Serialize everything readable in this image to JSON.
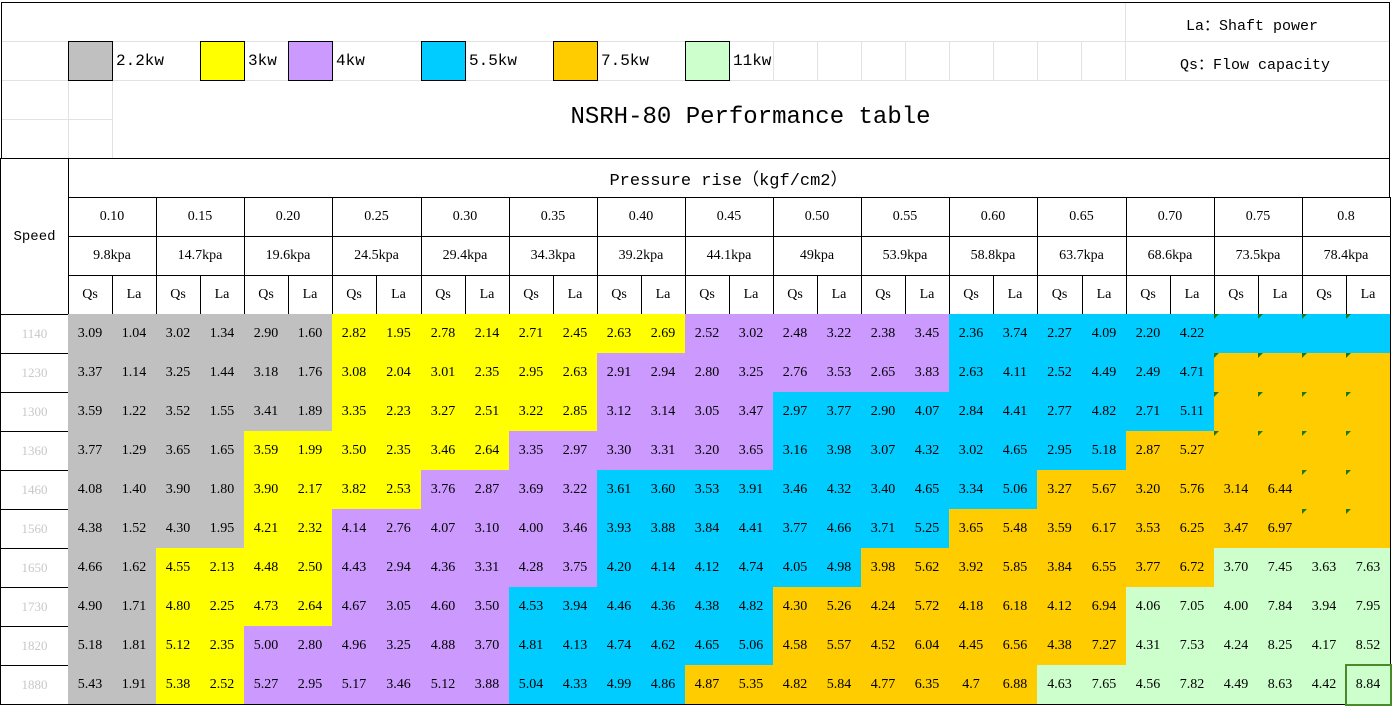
{
  "notes": {
    "la": "La：Shaft power",
    "qs": "Qs：Flow capacity"
  },
  "legend": [
    {
      "label": "2.2kw",
      "code": "g",
      "color": "#C0C0C0"
    },
    {
      "label": "3kw",
      "code": "y",
      "color": "#FFFF00"
    },
    {
      "label": "4kw",
      "code": "p",
      "color": "#CC99FF"
    },
    {
      "label": "5.5kw",
      "code": "c",
      "color": "#00CCFF"
    },
    {
      "label": "7.5kw",
      "code": "o",
      "color": "#FFCC00"
    },
    {
      "label": "11kw",
      "code": "l",
      "color": "#CCFFCC"
    }
  ],
  "title": "NSRH-80 Performance table",
  "table": {
    "speed_label": "Speed",
    "pressure_label": "Pressure rise（kgf/cm2）",
    "pressures": [
      "0.10",
      "0.15",
      "0.20",
      "0.25",
      "0.30",
      "0.35",
      "0.40",
      "0.45",
      "0.50",
      "0.55",
      "0.60",
      "0.65",
      "0.70",
      "0.75",
      "0.8"
    ],
    "kpa": [
      "9.8kpa",
      "14.7kpa",
      "19.6kpa",
      "24.5kpa",
      "29.4kpa",
      "34.3kpa",
      "39.2kpa",
      "44.1kpa",
      "49kpa",
      "53.9kpa",
      "58.8kpa",
      "63.7kpa",
      "68.6kpa",
      "73.5kpa",
      "78.4kpa"
    ],
    "qs_label": "Qs",
    "la_label": "La",
    "rows": [
      {
        "speed": "1140",
        "power": "gggyyyypppccccc",
        "values": [
          "3.09",
          "1.04",
          "3.02",
          "1.34",
          "2.90",
          "1.60",
          "2.82",
          "1.95",
          "2.78",
          "2.14",
          "2.71",
          "2.45",
          "2.63",
          "2.69",
          "2.52",
          "3.02",
          "2.48",
          "3.22",
          "2.38",
          "3.45",
          "2.36",
          "3.74",
          "2.27",
          "4.09",
          "2.20",
          "4.22",
          "",
          "",
          "",
          ""
        ]
      },
      {
        "speed": "1230",
        "power": "gggyyyppppcccoo",
        "values": [
          "3.37",
          "1.14",
          "3.25",
          "1.44",
          "3.18",
          "1.76",
          "3.08",
          "2.04",
          "3.01",
          "2.35",
          "2.95",
          "2.63",
          "2.91",
          "2.94",
          "2.80",
          "3.25",
          "2.76",
          "3.53",
          "2.65",
          "3.83",
          "2.63",
          "4.11",
          "2.52",
          "4.49",
          "2.49",
          "4.71",
          "",
          "",
          "",
          ""
        ]
      },
      {
        "speed": "1300",
        "power": "gggyyyppccccc oo",
        "values": [
          "3.59",
          "1.22",
          "3.52",
          "1.55",
          "3.41",
          "1.89",
          "3.35",
          "2.23",
          "3.27",
          "2.51",
          "3.22",
          "2.85",
          "3.12",
          "3.14",
          "3.05",
          "3.47",
          "2.97",
          "3.77",
          "2.90",
          "4.07",
          "2.84",
          "4.41",
          "2.77",
          "4.82",
          "2.71",
          "5.11",
          "",
          "",
          "",
          ""
        ]
      },
      {
        "speed": "1360",
        "power": "ggyyypppccccooo",
        "values": [
          "3.77",
          "1.29",
          "3.65",
          "1.65",
          "3.59",
          "1.99",
          "3.50",
          "2.35",
          "3.46",
          "2.64",
          "3.35",
          "2.97",
          "3.30",
          "3.31",
          "3.20",
          "3.65",
          "3.16",
          "3.98",
          "3.07",
          "4.32",
          "3.02",
          "4.65",
          "2.95",
          "5.18",
          "2.87",
          "5.27",
          "",
          "",
          "",
          ""
        ]
      },
      {
        "speed": "1460",
        "power": "ggyyppccccc oooo",
        "values": [
          "4.08",
          "1.40",
          "3.90",
          "1.80",
          "3.90",
          "2.17",
          "3.82",
          "2.53",
          "3.76",
          "2.87",
          "3.69",
          "3.22",
          "3.61",
          "3.60",
          "3.53",
          "3.91",
          "3.46",
          "4.32",
          "3.40",
          "4.65",
          "3.34",
          "5.06",
          "3.27",
          "5.67",
          "3.20",
          "5.76",
          "3.14",
          "6.44",
          "",
          ""
        ]
      },
      {
        "speed": "1560",
        "power": "ggypppccccooooo",
        "values": [
          "4.38",
          "1.52",
          "4.30",
          "1.95",
          "4.21",
          "2.32",
          "4.14",
          "2.76",
          "4.07",
          "3.10",
          "4.00",
          "3.46",
          "3.93",
          "3.88",
          "3.84",
          "4.41",
          "3.77",
          "4.66",
          "3.71",
          "5.25",
          "3.65",
          "5.48",
          "3.59",
          "6.17",
          "3.53",
          "6.25",
          "3.47",
          "6.97",
          "",
          ""
        ]
      },
      {
        "speed": "1650",
        "power": "gyypppcccoooo ll",
        "values": [
          "4.66",
          "1.62",
          "4.55",
          "2.13",
          "4.48",
          "2.50",
          "4.43",
          "2.94",
          "4.36",
          "3.31",
          "4.28",
          "3.75",
          "4.20",
          "4.14",
          "4.12",
          "4.74",
          "4.05",
          "4.98",
          "3.98",
          "5.62",
          "3.92",
          "5.85",
          "3.84",
          "6.55",
          "3.77",
          "6.72",
          "3.70",
          "7.45",
          "3.63",
          "7.63"
        ]
      },
      {
        "speed": "1730",
        "power": "gyyppcccoooolll",
        "values": [
          "4.90",
          "1.71",
          "4.80",
          "2.25",
          "4.73",
          "2.64",
          "4.67",
          "3.05",
          "4.60",
          "3.50",
          "4.53",
          "3.94",
          "4.46",
          "4.36",
          "4.38",
          "4.82",
          "4.30",
          "5.26",
          "4.24",
          "5.72",
          "4.18",
          "6.18",
          "4.12",
          "6.94",
          "4.06",
          "7.05",
          "4.00",
          "7.84",
          "3.94",
          "7.95"
        ]
      },
      {
        "speed": "1820",
        "power": "gypppcccoooolll",
        "values": [
          "5.18",
          "1.81",
          "5.12",
          "2.35",
          "5.00",
          "2.80",
          "4.96",
          "3.25",
          "4.88",
          "3.70",
          "4.81",
          "4.13",
          "4.74",
          "4.62",
          "4.65",
          "5.06",
          "4.58",
          "5.57",
          "4.52",
          "6.04",
          "4.45",
          "6.56",
          "4.38",
          "7.27",
          "4.31",
          "7.53",
          "4.24",
          "8.25",
          "4.17",
          "8.52"
        ]
      },
      {
        "speed": "1880",
        "power": "gypppccoooollll",
        "values": [
          "5.43",
          "1.91",
          "5.38",
          "2.52",
          "5.27",
          "2.95",
          "5.17",
          "3.46",
          "5.12",
          "3.88",
          "5.04",
          "4.33",
          "4.99",
          "4.86",
          "4.87",
          "5.35",
          "4.82",
          "5.84",
          "4.77",
          "6.35",
          "4.7",
          "6.88",
          "4.63",
          "7.65",
          "4.56",
          "7.82",
          "4.49",
          "8.63",
          "4.42",
          "8.84"
        ]
      }
    ]
  }
}
